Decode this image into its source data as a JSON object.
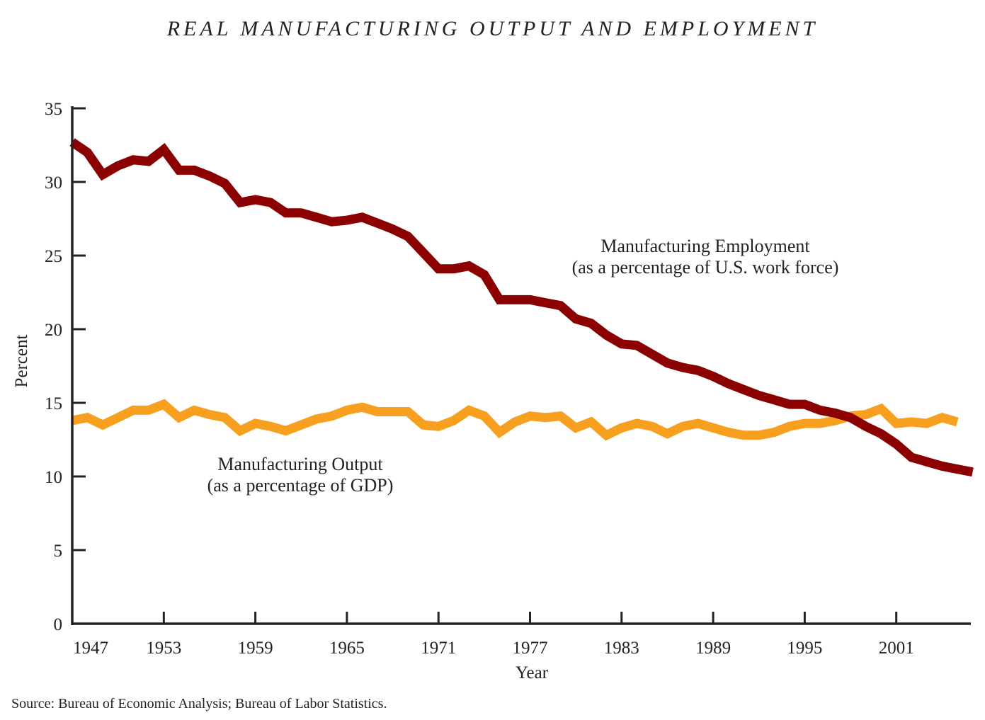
{
  "chart_data": {
    "type": "line",
    "title": "REAL MANUFACTURING OUTPUT AND EMPLOYMENT",
    "xlabel": "Year",
    "ylabel": "Percent",
    "xlim": [
      1947,
      2006
    ],
    "ylim": [
      0,
      35
    ],
    "x_ticks": [
      1947,
      1953,
      1959,
      1965,
      1971,
      1977,
      1983,
      1989,
      1995,
      2001
    ],
    "y_ticks": [
      0,
      5,
      10,
      15,
      20,
      25,
      30,
      35
    ],
    "grid": false,
    "legend": "none (inline annotations)",
    "series": [
      {
        "name": "Manufacturing Employment",
        "color": "#8B0000",
        "label_lines": [
          "Manufacturing Employment",
          "(as a percentage of U.S. work force)"
        ],
        "x": [
          1947,
          1948,
          1949,
          1950,
          1951,
          1952,
          1953,
          1954,
          1955,
          1956,
          1957,
          1958,
          1959,
          1960,
          1961,
          1962,
          1963,
          1964,
          1965,
          1966,
          1967,
          1968,
          1969,
          1970,
          1971,
          1972,
          1973,
          1974,
          1975,
          1976,
          1977,
          1978,
          1979,
          1980,
          1981,
          1982,
          1983,
          1984,
          1985,
          1986,
          1987,
          1988,
          1989,
          1990,
          1991,
          1992,
          1993,
          1994,
          1995,
          1996,
          1997,
          1998,
          1999,
          2000,
          2001,
          2002,
          2003,
          2004,
          2005,
          2006
        ],
        "values": [
          32.7,
          32.0,
          30.5,
          31.1,
          31.5,
          31.4,
          32.2,
          30.8,
          30.8,
          30.4,
          29.9,
          28.6,
          28.8,
          28.6,
          27.9,
          27.9,
          27.6,
          27.3,
          27.4,
          27.6,
          27.2,
          26.8,
          26.3,
          25.2,
          24.1,
          24.1,
          24.3,
          23.7,
          22.0,
          22.0,
          22.0,
          21.8,
          21.6,
          20.7,
          20.4,
          19.6,
          19.0,
          18.9,
          18.3,
          17.7,
          17.4,
          17.2,
          16.8,
          16.3,
          15.9,
          15.5,
          15.2,
          14.9,
          14.9,
          14.5,
          14.3,
          14.0,
          13.4,
          12.9,
          12.2,
          11.3,
          11.0,
          10.7,
          10.5,
          10.3
        ]
      },
      {
        "name": "Manufacturing Output",
        "color": "#F7A020",
        "label_lines": [
          "Manufacturing Output",
          "(as a percentage of GDP)"
        ],
        "x": [
          1947,
          1948,
          1949,
          1950,
          1951,
          1952,
          1953,
          1954,
          1955,
          1956,
          1957,
          1958,
          1959,
          1960,
          1961,
          1962,
          1963,
          1964,
          1965,
          1966,
          1967,
          1968,
          1969,
          1970,
          1971,
          1972,
          1973,
          1974,
          1975,
          1976,
          1977,
          1978,
          1979,
          1980,
          1981,
          1982,
          1983,
          1984,
          1985,
          1986,
          1987,
          1988,
          1989,
          1990,
          1991,
          1992,
          1993,
          1994,
          1995,
          1996,
          1997,
          1998,
          1999,
          2000,
          2001,
          2002,
          2003,
          2004,
          2005
        ],
        "values": [
          13.8,
          14.0,
          13.5,
          14.0,
          14.5,
          14.5,
          14.9,
          14.0,
          14.5,
          14.2,
          14.0,
          13.1,
          13.6,
          13.4,
          13.1,
          13.5,
          13.9,
          14.1,
          14.5,
          14.7,
          14.4,
          14.4,
          14.4,
          13.5,
          13.4,
          13.8,
          14.5,
          14.1,
          13.0,
          13.7,
          14.1,
          14.0,
          14.1,
          13.3,
          13.7,
          12.8,
          13.3,
          13.6,
          13.4,
          12.9,
          13.4,
          13.6,
          13.3,
          13.0,
          12.8,
          12.8,
          13.0,
          13.4,
          13.6,
          13.6,
          13.8,
          14.1,
          14.2,
          14.6,
          13.6,
          13.7,
          13.6,
          14.0,
          13.7
        ]
      }
    ],
    "source": "Source: Bureau of Economic Analysis; Bureau of Labor Statistics."
  }
}
